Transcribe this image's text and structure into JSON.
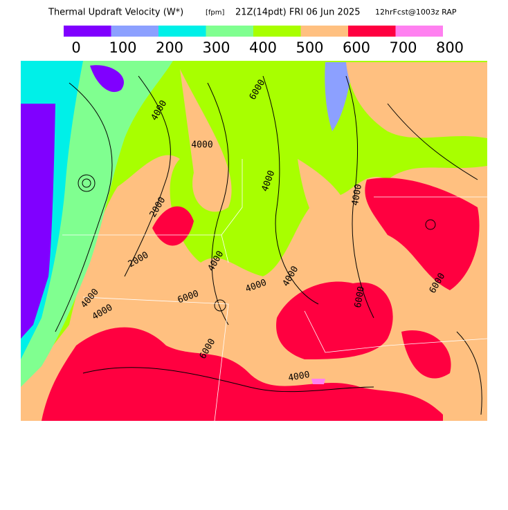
{
  "header": {
    "title": "Thermal Updraft Velocity (W*)",
    "units": "[fpm]",
    "valid": "21Z(14pdt) FRI 06 Jun 2025",
    "forecast": "12hrFcst@1003z RAP"
  },
  "legend": {
    "colors": [
      "#8000ff",
      "#8ca0ff",
      "#00f0e8",
      "#80ff90",
      "#a8ff00",
      "#ffc080",
      "#ff0040",
      "#ff80f0"
    ],
    "labels": [
      "0",
      "100",
      "200",
      "300",
      "400",
      "500",
      "600",
      "700",
      "800"
    ]
  },
  "map": {
    "contour_labels": [
      "4000",
      "6000",
      "4000",
      "4000",
      "4000",
      "2000",
      "2000",
      "4000",
      "4000",
      "4000",
      "4000",
      "6000",
      "4000",
      "6000",
      "6000",
      "4000",
      "6000"
    ]
  }
}
